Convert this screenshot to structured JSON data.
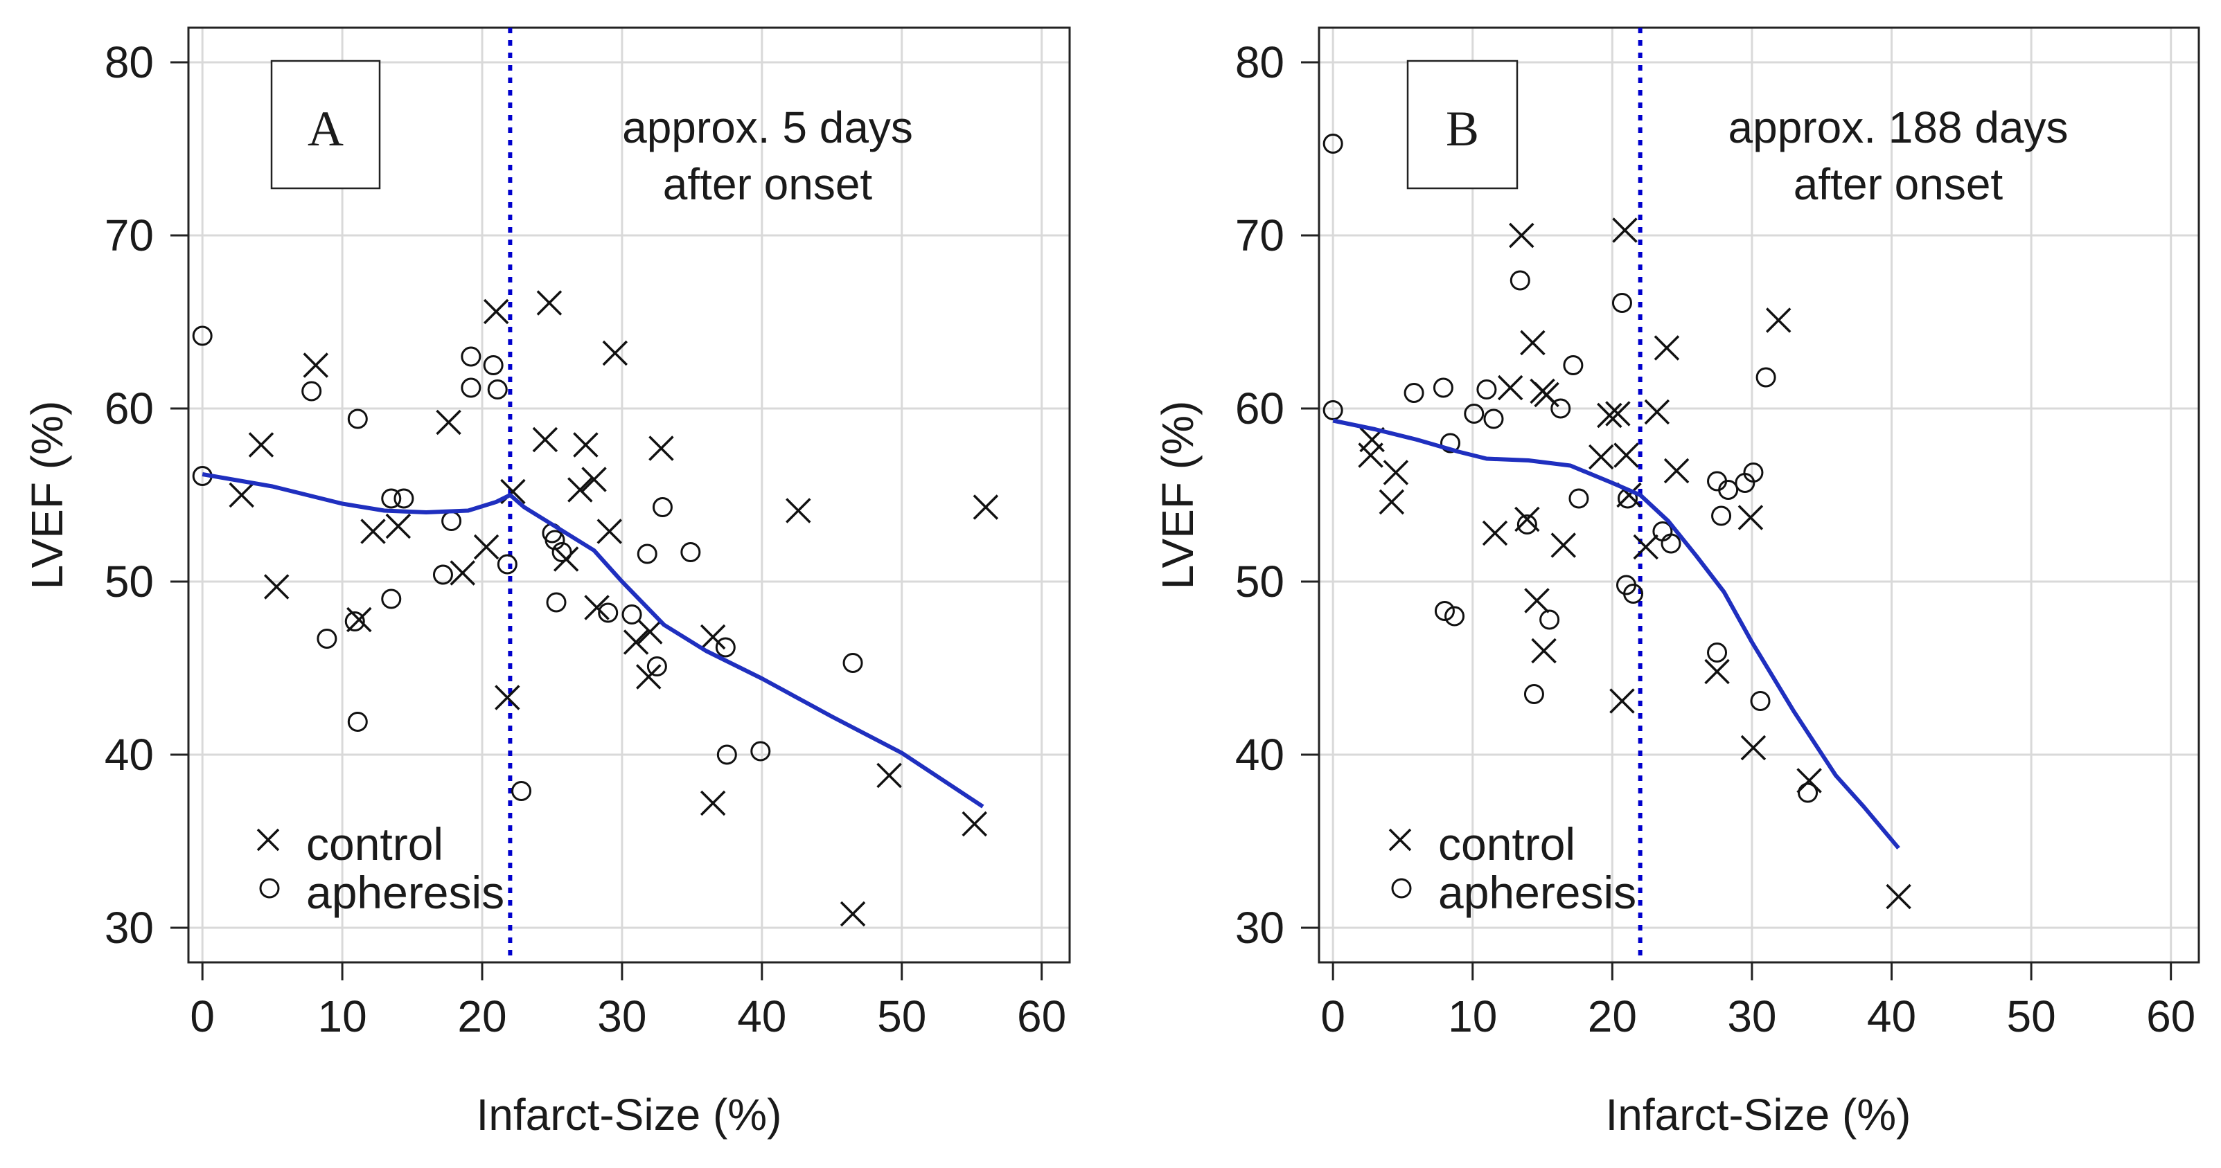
{
  "chart_data": [
    {
      "type": "scatter",
      "panel_label": "A",
      "annotation": [
        "approx. 5 days",
        "after onset"
      ],
      "xlabel": "Infarct-Size (%)",
      "ylabel": "LVEF (%)",
      "xlim": [
        -1,
        62
      ],
      "ylim": [
        28,
        82
      ],
      "xticks": [
        0,
        10,
        20,
        30,
        40,
        50,
        60
      ],
      "yticks": [
        30,
        40,
        50,
        60,
        70,
        80
      ],
      "grid": true,
      "reference_line": {
        "x": 22,
        "style": "dotted",
        "color": "#0000cc"
      },
      "legend": {
        "position": "bottom-left",
        "entries": [
          {
            "marker": "x",
            "label": "control"
          },
          {
            "marker": "o",
            "label": "apheresis"
          }
        ]
      },
      "series": [
        {
          "name": "control",
          "marker": "x",
          "points": [
            [
              2.8,
              55
            ],
            [
              4.2,
              57.9
            ],
            [
              5.3,
              49.7
            ],
            [
              8.1,
              62.5
            ],
            [
              11.2,
              47.8
            ],
            [
              12.2,
              52.9
            ],
            [
              14,
              53.2
            ],
            [
              17.6,
              59.2
            ],
            [
              18.6,
              50.5
            ],
            [
              20.3,
              52
            ],
            [
              21,
              65.6
            ],
            [
              21.8,
              43.3
            ],
            [
              22.2,
              55.2
            ],
            [
              24.5,
              58.2
            ],
            [
              24.8,
              66.1
            ],
            [
              26,
              51.3
            ],
            [
              27,
              55.3
            ],
            [
              27.4,
              57.9
            ],
            [
              28,
              55.9
            ],
            [
              28.2,
              48.5
            ],
            [
              29.1,
              52.9
            ],
            [
              29.5,
              63.2
            ],
            [
              31,
              46.5
            ],
            [
              31.9,
              44.5
            ],
            [
              32,
              47.1
            ],
            [
              32.8,
              57.7
            ],
            [
              36.5,
              46.8
            ],
            [
              36.5,
              37.2
            ],
            [
              42.6,
              54.1
            ],
            [
              46.5,
              30.8
            ],
            [
              49.1,
              38.8
            ],
            [
              55.2,
              36
            ],
            [
              56,
              54.3
            ]
          ]
        },
        {
          "name": "apheresis",
          "marker": "o",
          "points": [
            [
              0,
              64.2
            ],
            [
              0,
              56.1
            ],
            [
              7.8,
              61
            ],
            [
              8.9,
              46.7
            ],
            [
              10.9,
              47.7
            ],
            [
              11.1,
              59.4
            ],
            [
              11.1,
              41.9
            ],
            [
              13.5,
              54.8
            ],
            [
              13.5,
              49
            ],
            [
              14.4,
              54.8
            ],
            [
              17.2,
              50.4
            ],
            [
              17.8,
              53.5
            ],
            [
              19.2,
              61.2
            ],
            [
              19.2,
              63
            ],
            [
              20.8,
              62.5
            ],
            [
              21.1,
              61.1
            ],
            [
              21.8,
              51
            ],
            [
              22.8,
              37.9
            ],
            [
              25,
              52.8
            ],
            [
              25.2,
              52.4
            ],
            [
              25.3,
              48.8
            ],
            [
              25.7,
              51.7
            ],
            [
              29,
              48.2
            ],
            [
              30.7,
              48.1
            ],
            [
              31.8,
              51.6
            ],
            [
              32.5,
              45.1
            ],
            [
              32.9,
              54.3
            ],
            [
              34.9,
              51.7
            ],
            [
              37.4,
              46.2
            ],
            [
              37.5,
              40
            ],
            [
              39.9,
              40.2
            ],
            [
              46.5,
              45.3
            ]
          ]
        }
      ],
      "smoother": {
        "name": "lowess",
        "color": "#1f2fbf",
        "points": [
          [
            0,
            56.2
          ],
          [
            5,
            55.5
          ],
          [
            10,
            54.5
          ],
          [
            13,
            54.1
          ],
          [
            16,
            54
          ],
          [
            19,
            54.1
          ],
          [
            21,
            54.6
          ],
          [
            22,
            55
          ],
          [
            23,
            54.3
          ],
          [
            25,
            53.3
          ],
          [
            28,
            51.8
          ],
          [
            30,
            50
          ],
          [
            33,
            47.5
          ],
          [
            36,
            46
          ],
          [
            40,
            44.4
          ],
          [
            45,
            42.2
          ],
          [
            50,
            40.1
          ],
          [
            55.8,
            37
          ]
        ]
      }
    },
    {
      "type": "scatter",
      "panel_label": "B",
      "annotation": [
        "approx. 188 days",
        "after onset"
      ],
      "xlabel": "Infarct-Size (%)",
      "ylabel": "LVEF (%)",
      "xlim": [
        -1,
        62
      ],
      "ylim": [
        28,
        82
      ],
      "xticks": [
        0,
        10,
        20,
        30,
        40,
        50,
        60
      ],
      "yticks": [
        30,
        40,
        50,
        60,
        70,
        80
      ],
      "grid": true,
      "reference_line": {
        "x": 22,
        "style": "dotted",
        "color": "#0000cc"
      },
      "legend": {
        "position": "bottom-left",
        "entries": [
          {
            "marker": "x",
            "label": "control"
          },
          {
            "marker": "o",
            "label": "apheresis"
          }
        ]
      },
      "series": [
        {
          "name": "control",
          "marker": "x",
          "points": [
            [
              2.8,
              58.2
            ],
            [
              2.7,
              57.3
            ],
            [
              4.2,
              54.6
            ],
            [
              4.5,
              56.3
            ],
            [
              11.6,
              52.8
            ],
            [
              12.7,
              61.2
            ],
            [
              13.5,
              70
            ],
            [
              13.9,
              53.6
            ],
            [
              14.3,
              63.8
            ],
            [
              14.6,
              48.9
            ],
            [
              15,
              61
            ],
            [
              15.1,
              46
            ],
            [
              15.3,
              60.8
            ],
            [
              16.5,
              52.1
            ],
            [
              19.2,
              57.2
            ],
            [
              19.8,
              59.6
            ],
            [
              20.4,
              59.7
            ],
            [
              20.7,
              43.1
            ],
            [
              20.9,
              70.3
            ],
            [
              21,
              57.3
            ],
            [
              21.2,
              55
            ],
            [
              22.4,
              52
            ],
            [
              23.2,
              59.8
            ],
            [
              23.9,
              63.5
            ],
            [
              24.6,
              56.4
            ],
            [
              27.5,
              44.8
            ],
            [
              29.9,
              53.7
            ],
            [
              30.1,
              40.4
            ],
            [
              31.9,
              65.1
            ],
            [
              34.1,
              38.5
            ],
            [
              40.5,
              31.8
            ]
          ]
        },
        {
          "name": "apheresis",
          "marker": "o",
          "points": [
            [
              0,
              75.3
            ],
            [
              0,
              59.9
            ],
            [
              5.8,
              60.9
            ],
            [
              7.9,
              61.2
            ],
            [
              8,
              48.3
            ],
            [
              8.4,
              58
            ],
            [
              8.7,
              48
            ],
            [
              10.1,
              59.7
            ],
            [
              11,
              61.1
            ],
            [
              11.5,
              59.4
            ],
            [
              13.4,
              67.4
            ],
            [
              13.9,
              53.3
            ],
            [
              14.4,
              43.5
            ],
            [
              15.5,
              47.8
            ],
            [
              16.3,
              60
            ],
            [
              17.2,
              62.5
            ],
            [
              17.6,
              54.8
            ],
            [
              20.7,
              66.1
            ],
            [
              21,
              49.8
            ],
            [
              21.1,
              54.8
            ],
            [
              21.5,
              49.3
            ],
            [
              23.6,
              52.9
            ],
            [
              24.2,
              52.2
            ],
            [
              27.5,
              55.8
            ],
            [
              27.5,
              45.9
            ],
            [
              27.8,
              53.8
            ],
            [
              28.3,
              55.3
            ],
            [
              29.5,
              55.7
            ],
            [
              30.1,
              56.3
            ],
            [
              30.6,
              43.1
            ],
            [
              31,
              61.8
            ],
            [
              34,
              37.8
            ]
          ]
        }
      ],
      "smoother": {
        "name": "lowess",
        "color": "#1f2fbf",
        "points": [
          [
            0,
            59.3
          ],
          [
            3,
            58.8
          ],
          [
            6,
            58.2
          ],
          [
            9,
            57.5
          ],
          [
            11,
            57.1
          ],
          [
            14,
            57
          ],
          [
            17,
            56.7
          ],
          [
            20,
            55.7
          ],
          [
            22,
            55
          ],
          [
            24,
            53.5
          ],
          [
            26,
            51.5
          ],
          [
            28,
            49.4
          ],
          [
            30,
            46.5
          ],
          [
            33,
            42.5
          ],
          [
            36,
            38.8
          ],
          [
            38,
            37
          ],
          [
            40.5,
            34.6
          ]
        ]
      }
    }
  ]
}
